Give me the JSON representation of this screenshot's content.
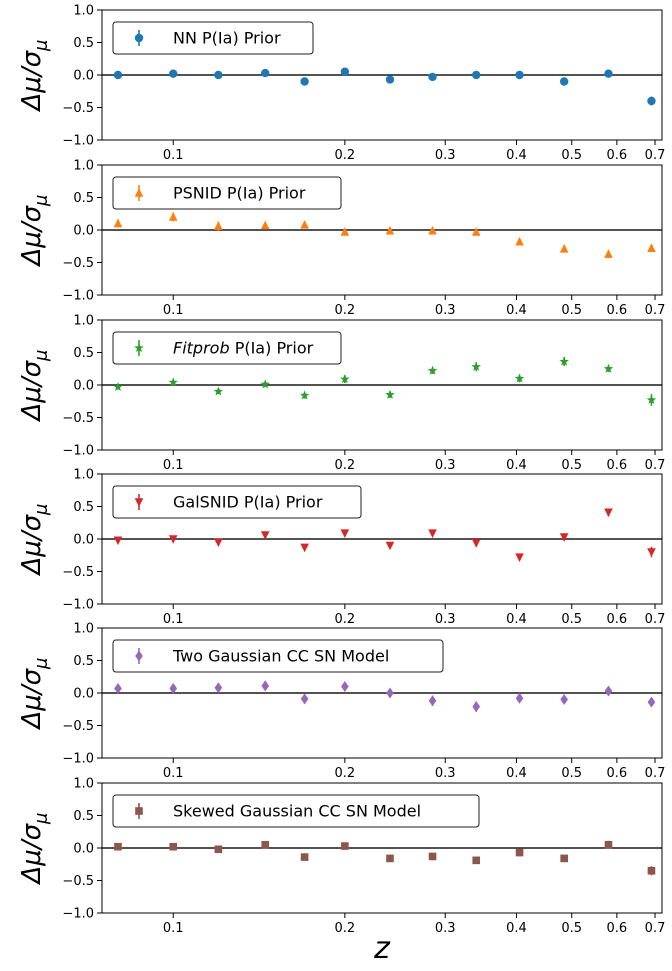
{
  "figure": {
    "xlabel": "z"
  },
  "chart_data": [
    {
      "type": "scatter",
      "legend": "NN P(Ia) Prior",
      "legend_placement": "upper-left",
      "color": "#1f77b4",
      "marker": "circle",
      "ylabel": "Δμ/σ_μ",
      "xlabel": "",
      "xscale": "log",
      "xlim": [
        0.075,
        0.72
      ],
      "ylim": [
        -1.0,
        1.0
      ],
      "yticks": [
        "1.0",
        "0.5",
        "0.0",
        "-0.5",
        "-1.0"
      ],
      "xticks": [
        "0.1",
        "0.2",
        "0.3",
        "0.4",
        "0.5",
        "0.6",
        "0.7"
      ],
      "x": [
        0.08,
        0.1,
        0.12,
        0.145,
        0.17,
        0.2,
        0.24,
        0.285,
        0.34,
        0.405,
        0.485,
        0.58,
        0.69
      ],
      "y": [
        0.0,
        0.02,
        0.0,
        0.03,
        -0.1,
        0.05,
        -0.07,
        -0.03,
        0.0,
        0.0,
        -0.1,
        0.02,
        -0.4
      ],
      "yerr": [
        0.03,
        0.03,
        0.03,
        0.04,
        0.05,
        0.05,
        0.05,
        0.04,
        0.03,
        0.03,
        0.04,
        0.04,
        0.07
      ]
    },
    {
      "type": "scatter",
      "legend": "PSNID P(Ia) Prior",
      "legend_placement": "upper-left",
      "color": "#ff7f0e",
      "marker": "triangle-up",
      "ylabel": "Δμ/σ_μ",
      "xlabel": "",
      "xscale": "log",
      "xlim": [
        0.075,
        0.72
      ],
      "ylim": [
        -1.0,
        1.0
      ],
      "yticks": [
        "1.0",
        "0.5",
        "0.0",
        "-0.5",
        "-1.0"
      ],
      "xticks": [
        "0.1",
        "0.2",
        "0.3",
        "0.4",
        "0.5",
        "0.6",
        "0.7"
      ],
      "x": [
        0.08,
        0.1,
        0.12,
        0.145,
        0.17,
        0.2,
        0.24,
        0.285,
        0.34,
        0.405,
        0.485,
        0.58,
        0.69
      ],
      "y": [
        0.1,
        0.2,
        0.06,
        0.07,
        0.08,
        -0.03,
        -0.01,
        -0.01,
        -0.03,
        -0.18,
        -0.29,
        -0.37,
        -0.28
      ],
      "yerr": [
        0.06,
        0.07,
        0.07,
        0.05,
        0.05,
        0.04,
        0.04,
        0.03,
        0.03,
        0.05,
        0.04,
        0.06,
        0.05
      ]
    },
    {
      "type": "scatter",
      "legend": "Fitprob P(Ia) Prior",
      "legend_italic_part": "Fitprob",
      "legend_plain_part": " P(Ia) Prior",
      "legend_placement": "upper-left",
      "color": "#2ca02c",
      "marker": "star",
      "ylabel": "Δμ/σ_μ",
      "xlabel": "",
      "xscale": "log",
      "xlim": [
        0.075,
        0.72
      ],
      "ylim": [
        -1.0,
        1.0
      ],
      "yticks": [
        "1.0",
        "0.5",
        "0.0",
        "-0.5",
        "-1.0"
      ],
      "xticks": [
        "0.1",
        "0.2",
        "0.3",
        "0.4",
        "0.5",
        "0.6",
        "0.7"
      ],
      "x": [
        0.08,
        0.1,
        0.12,
        0.145,
        0.17,
        0.2,
        0.24,
        0.285,
        0.34,
        0.405,
        0.485,
        0.58,
        0.69
      ],
      "y": [
        -0.03,
        0.04,
        -0.1,
        0.01,
        -0.16,
        0.09,
        -0.15,
        0.22,
        0.28,
        0.1,
        0.36,
        0.25,
        -0.23
      ],
      "yerr": [
        0.04,
        0.04,
        0.04,
        0.04,
        0.05,
        0.06,
        0.05,
        0.05,
        0.07,
        0.06,
        0.07,
        0.05,
        0.09
      ]
    },
    {
      "type": "scatter",
      "legend": "GalSNID P(Ia) Prior",
      "legend_placement": "upper-left",
      "color": "#d62728",
      "marker": "triangle-down",
      "ylabel": "Δμ/σ_μ",
      "xlabel": "",
      "xscale": "log",
      "xlim": [
        0.075,
        0.72
      ],
      "ylim": [
        -1.0,
        1.0
      ],
      "yticks": [
        "1.0",
        "0.5",
        "0.0",
        "-0.5",
        "-1.0"
      ],
      "xticks": [
        "0.1",
        "0.2",
        "0.3",
        "0.4",
        "0.5",
        "0.6",
        "0.7"
      ],
      "x": [
        0.08,
        0.1,
        0.12,
        0.145,
        0.17,
        0.2,
        0.24,
        0.285,
        0.34,
        0.405,
        0.485,
        0.58,
        0.69
      ],
      "y": [
        -0.02,
        0.0,
        -0.05,
        0.06,
        -0.13,
        0.09,
        -0.1,
        0.09,
        -0.06,
        -0.28,
        0.03,
        0.41,
        -0.2
      ],
      "yerr": [
        0.03,
        0.03,
        0.04,
        0.04,
        0.04,
        0.04,
        0.04,
        0.04,
        0.04,
        0.05,
        0.05,
        0.06,
        0.08
      ]
    },
    {
      "type": "scatter",
      "legend": "Two Gaussian CC SN Model",
      "legend_placement": "upper-left",
      "color": "#9467bd",
      "marker": "diamond",
      "ylabel": "Δμ/σ_μ",
      "xlabel": "",
      "xscale": "log",
      "xlim": [
        0.075,
        0.72
      ],
      "ylim": [
        -1.0,
        1.0
      ],
      "yticks": [
        "1.0",
        "0.5",
        "0.0",
        "-0.5",
        "-1.0"
      ],
      "xticks": [
        "0.1",
        "0.2",
        "0.3",
        "0.4",
        "0.5",
        "0.6",
        "0.7"
      ],
      "x": [
        0.08,
        0.1,
        0.12,
        0.145,
        0.17,
        0.2,
        0.24,
        0.285,
        0.34,
        0.405,
        0.485,
        0.58,
        0.69
      ],
      "y": [
        0.07,
        0.07,
        0.08,
        0.11,
        -0.09,
        0.1,
        0.0,
        -0.12,
        -0.21,
        -0.08,
        -0.1,
        0.03,
        -0.14
      ],
      "yerr": [
        0.06,
        0.06,
        0.06,
        0.06,
        0.07,
        0.06,
        0.06,
        0.08,
        0.08,
        0.06,
        0.06,
        0.05,
        0.07
      ]
    },
    {
      "type": "scatter",
      "legend": "Skewed Gaussian CC SN Model",
      "legend_placement": "upper-left",
      "color": "#8c564b",
      "marker": "square",
      "ylabel": "Δμ/σ_μ",
      "xlabel": "z",
      "xscale": "log",
      "xlim": [
        0.075,
        0.72
      ],
      "ylim": [
        -1.0,
        1.0
      ],
      "yticks": [
        "1.0",
        "0.5",
        "0.0",
        "-0.5",
        "-1.0"
      ],
      "xticks": [
        "0.1",
        "0.2",
        "0.3",
        "0.4",
        "0.5",
        "0.6",
        "0.7"
      ],
      "x": [
        0.08,
        0.1,
        0.12,
        0.145,
        0.17,
        0.2,
        0.24,
        0.285,
        0.34,
        0.405,
        0.485,
        0.58,
        0.69
      ],
      "y": [
        0.02,
        0.02,
        -0.02,
        0.05,
        -0.14,
        0.03,
        -0.16,
        -0.13,
        -0.19,
        -0.07,
        -0.16,
        0.05,
        -0.35
      ],
      "yerr": [
        0.04,
        0.04,
        0.04,
        0.05,
        0.05,
        0.05,
        0.05,
        0.05,
        0.05,
        0.06,
        0.05,
        0.06,
        0.07
      ]
    }
  ]
}
